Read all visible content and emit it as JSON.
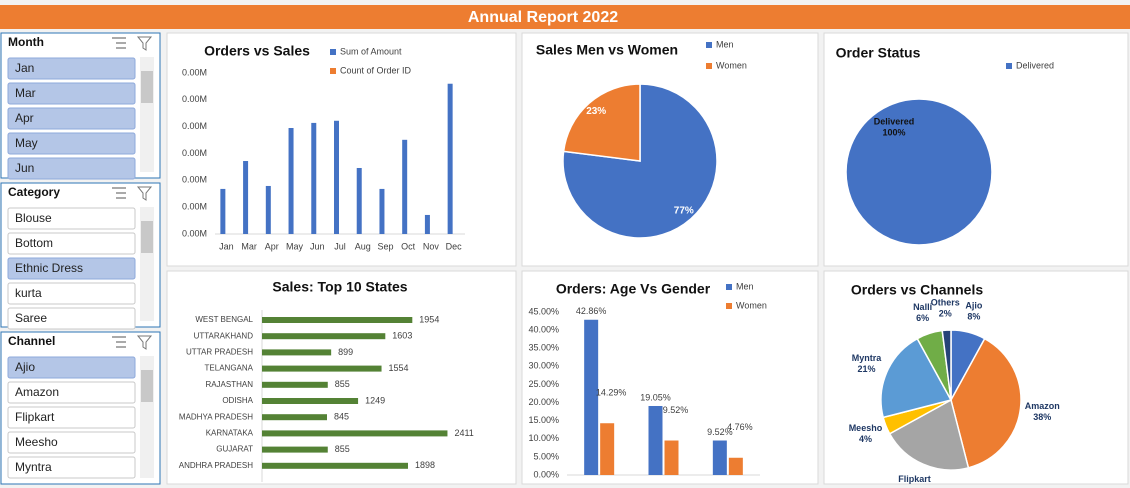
{
  "header": {
    "title": "Annual Report 2022"
  },
  "slicers": [
    {
      "title": "Month",
      "items": [
        {
          "label": "Jan",
          "selected": true
        },
        {
          "label": "Mar",
          "selected": true
        },
        {
          "label": "Apr",
          "selected": true
        },
        {
          "label": "May",
          "selected": true
        },
        {
          "label": "Jun",
          "selected": true
        }
      ]
    },
    {
      "title": "Category",
      "items": [
        {
          "label": "Blouse",
          "selected": false
        },
        {
          "label": "Bottom",
          "selected": false
        },
        {
          "label": "Ethnic Dress",
          "selected": true
        },
        {
          "label": "kurta",
          "selected": false
        },
        {
          "label": "Saree",
          "selected": false
        }
      ]
    },
    {
      "title": "Channel",
      "items": [
        {
          "label": "Ajio",
          "selected": true
        },
        {
          "label": "Amazon",
          "selected": false
        },
        {
          "label": "Flipkart",
          "selected": false
        },
        {
          "label": "Meesho",
          "selected": false
        },
        {
          "label": "Myntra",
          "selected": false
        }
      ]
    }
  ],
  "chart_data": [
    {
      "type": "bar",
      "title": "Orders vs Sales",
      "categories": [
        "Jan",
        "Mar",
        "Apr",
        "May",
        "Jun",
        "Jul",
        "Aug",
        "Sep",
        "Oct",
        "Nov",
        "Dec"
      ],
      "series": [
        {
          "name": "Sum of Amount",
          "color": "#4472c4",
          "values": [
            1680,
            2720,
            1790,
            3950,
            4140,
            4220,
            2460,
            1680,
            3510,
            710,
            5600
          ]
        },
        {
          "name": "Count of Order ID",
          "color": "#ed7d31",
          "values": [
            0,
            0,
            0,
            0,
            0,
            0,
            0,
            0,
            0,
            0,
            0
          ]
        }
      ],
      "ylim": [
        0,
        6000
      ],
      "yticks": [
        {
          "value": 0,
          "label": "0.00M"
        },
        {
          "value": 1000,
          "label": "0.00M"
        },
        {
          "value": 2000,
          "label": "0.00M"
        },
        {
          "value": 3000,
          "label": "0.00M"
        },
        {
          "value": 4000,
          "label": "0.00M"
        },
        {
          "value": 5000,
          "label": "0.00M"
        },
        {
          "value": 6000,
          "label": "0.00M"
        }
      ],
      "legend": "top"
    },
    {
      "type": "pie",
      "title": "Sales Men vs Women",
      "categories": [
        "Men",
        "Women"
      ],
      "values": [
        77,
        23
      ],
      "value_labels": [
        "77%",
        "23%"
      ],
      "colors": [
        "#4472c4",
        "#ed7d31"
      ],
      "legend": "top-right"
    },
    {
      "type": "pie",
      "title": "Order Status",
      "categories": [
        "Delivered"
      ],
      "values": [
        100
      ],
      "value_labels": [
        "100%"
      ],
      "colors": [
        "#4472c4"
      ],
      "legend": "top-right"
    },
    {
      "type": "barh",
      "title": "Sales: Top 10 States",
      "categories": [
        "WEST BENGAL",
        "UTTARAKHAND",
        "UTTAR PRADESH",
        "TELANGANA",
        "RAJASTHAN",
        "ODISHA",
        "MADHYA PRADESH",
        "KARNATAKA",
        "GUJARAT",
        "ANDHRA PRADESH"
      ],
      "values": [
        1954,
        1603,
        899,
        1554,
        855,
        1249,
        845,
        2411,
        855,
        1898
      ],
      "color": "#548235",
      "xlim": [
        0,
        2600
      ]
    },
    {
      "type": "bar",
      "title": "Orders: Age Vs Gender",
      "categories": [
        null,
        null,
        null
      ],
      "series": [
        {
          "name": "Men",
          "color": "#4472c4",
          "values": [
            42.86,
            19.05,
            9.52
          ],
          "value_labels": [
            "42.86%",
            "19.05%",
            "9.52%"
          ]
        },
        {
          "name": "Women",
          "color": "#ed7d31",
          "values": [
            14.29,
            9.52,
            4.76
          ],
          "value_labels": [
            "14.29%",
            "9.52%",
            "4.76%"
          ]
        }
      ],
      "ylim": [
        0,
        45
      ],
      "yticks": [
        {
          "value": 0,
          "label": "0.00%"
        },
        {
          "value": 5,
          "label": "5.00%"
        },
        {
          "value": 10,
          "label": "10.00%"
        },
        {
          "value": 15,
          "label": "15.00%"
        },
        {
          "value": 20,
          "label": "20.00%"
        },
        {
          "value": 25,
          "label": "25.00%"
        },
        {
          "value": 30,
          "label": "30.00%"
        },
        {
          "value": 35,
          "label": "35.00%"
        },
        {
          "value": 40,
          "label": "40.00%"
        },
        {
          "value": 45,
          "label": "45.00%"
        }
      ],
      "legend": "top-right"
    },
    {
      "type": "pie",
      "title": "Orders vs Channels",
      "categories": [
        "Ajio",
        "Amazon",
        "Flipkart",
        "Meesho",
        "Myntra",
        "Nalli",
        "Others"
      ],
      "values": [
        8,
        38,
        21,
        4,
        21,
        6,
        2
      ],
      "value_labels": [
        "8%",
        "38%",
        null,
        "4%",
        "21%",
        "6%",
        "2%"
      ],
      "colors": [
        "#4472c4",
        "#ed7d31",
        "#a5a5a5",
        "#ffc000",
        "#5b9bd5",
        "#70ad47",
        "#264478"
      ]
    }
  ]
}
